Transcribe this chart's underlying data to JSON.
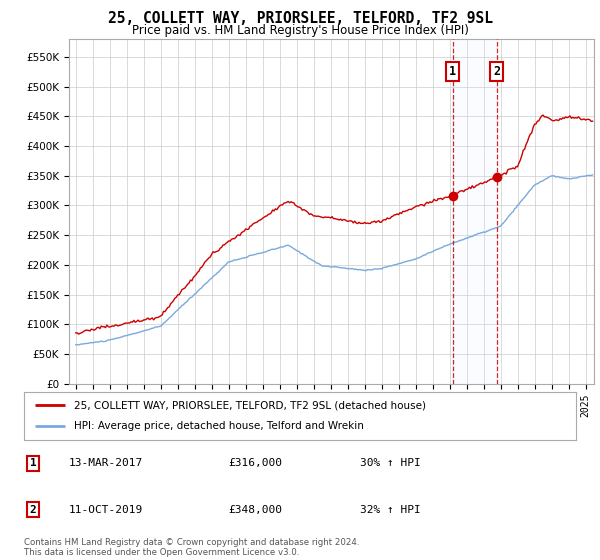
{
  "title": "25, COLLETT WAY, PRIORSLEE, TELFORD, TF2 9SL",
  "subtitle": "Price paid vs. HM Land Registry's House Price Index (HPI)",
  "legend_line1": "25, COLLETT WAY, PRIORSLEE, TELFORD, TF2 9SL (detached house)",
  "legend_line2": "HPI: Average price, detached house, Telford and Wrekin",
  "table_rows": [
    {
      "num": "1",
      "date": "13-MAR-2017",
      "price": "£316,000",
      "hpi": "30% ↑ HPI"
    },
    {
      "num": "2",
      "date": "11-OCT-2019",
      "price": "£348,000",
      "hpi": "32% ↑ HPI"
    }
  ],
  "footnote1": "Contains HM Land Registry data © Crown copyright and database right 2024.",
  "footnote2": "This data is licensed under the Open Government Licence v3.0.",
  "sale1_year": 2017.19,
  "sale1_price": 316000,
  "sale2_year": 2019.78,
  "sale2_price": 348000,
  "ylim_min": 0,
  "ylim_max": 580000,
  "red_color": "#cc0000",
  "blue_color": "#7aaadd",
  "background_color": "#ffffff",
  "grid_color": "#cccccc",
  "highlight_color": "#ddeeff"
}
